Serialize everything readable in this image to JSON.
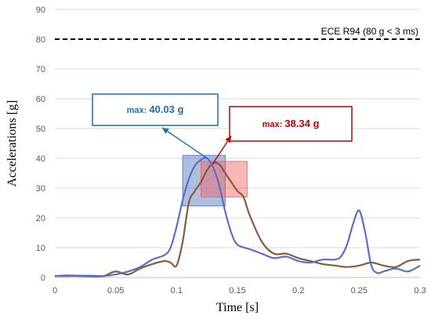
{
  "chart_data": {
    "type": "line",
    "xlabel": "Time [s]",
    "ylabel": "Accelerations [g]",
    "xlim": [
      0,
      0.3
    ],
    "ylim": [
      0,
      90
    ],
    "x_ticks": [
      "0",
      "0.05",
      "0.1",
      "0.15",
      "0.2",
      "0.25",
      "0.3"
    ],
    "y_ticks": [
      "0",
      "10",
      "20",
      "30",
      "40",
      "50",
      "60",
      "70",
      "80",
      "90"
    ],
    "grid": "horizontal",
    "reference_line": {
      "y": 80,
      "label": "ECE R94 (80 g < 3 ms)",
      "style": "dashed",
      "color": "#000000"
    },
    "series": [
      {
        "color": "#5b6fc4",
        "x": [
          0,
          0.01,
          0.02,
          0.03,
          0.04,
          0.05,
          0.06,
          0.07,
          0.08,
          0.09,
          0.095,
          0.1,
          0.105,
          0.11,
          0.115,
          0.12,
          0.125,
          0.13,
          0.135,
          0.14,
          0.145,
          0.15,
          0.16,
          0.17,
          0.18,
          0.19,
          0.2,
          0.21,
          0.22,
          0.23,
          0.235,
          0.24,
          0.245,
          0.25,
          0.255,
          0.26,
          0.265,
          0.27,
          0.28,
          0.29,
          0.3
        ],
        "y": [
          0.5,
          0.7,
          0.6,
          0.6,
          0.5,
          1,
          2,
          3.5,
          6,
          7.5,
          10,
          17,
          26,
          33,
          37.5,
          39.5,
          40.03,
          37,
          31,
          22,
          15,
          11,
          9.5,
          8,
          6.5,
          7,
          5.5,
          5,
          6,
          6,
          7,
          11,
          18,
          22.5,
          15,
          4,
          1.5,
          2,
          3,
          2,
          4
        ]
      },
      {
        "color": "#8b5a3c",
        "x": [
          0,
          0.01,
          0.02,
          0.03,
          0.04,
          0.05,
          0.06,
          0.07,
          0.08,
          0.09,
          0.095,
          0.1,
          0.105,
          0.11,
          0.115,
          0.12,
          0.125,
          0.13,
          0.135,
          0.14,
          0.145,
          0.15,
          0.155,
          0.16,
          0.17,
          0.18,
          0.19,
          0.2,
          0.21,
          0.22,
          0.23,
          0.24,
          0.25,
          0.26,
          0.27,
          0.28,
          0.29,
          0.3
        ],
        "y": [
          0.5,
          0.5,
          0.5,
          0.4,
          0.5,
          2,
          1,
          3,
          4.5,
          5.5,
          5,
          4,
          12,
          25,
          29,
          32,
          36,
          38.34,
          38,
          35,
          32,
          29,
          27,
          21,
          12,
          8,
          8,
          6.5,
          5.5,
          4.5,
          4,
          3.5,
          4,
          5,
          4,
          3.5,
          5.5,
          6
        ]
      }
    ],
    "annotations": [
      {
        "prefix": "max:",
        "value": "40.03 g",
        "color": "#1f6fb5",
        "peak": [
          0.125,
          40.03
        ],
        "box_x": [
          0.105,
          0.14
        ],
        "box_y": [
          24,
          41
        ],
        "box_fill": "#4a6fb8"
      },
      {
        "prefix": "max:",
        "value": "38.34 g",
        "color": "#c00000",
        "peak": [
          0.13,
          38.34
        ],
        "box_x": [
          0.12,
          0.158
        ],
        "box_y": [
          27,
          39
        ],
        "box_fill": "#f06060"
      }
    ]
  }
}
